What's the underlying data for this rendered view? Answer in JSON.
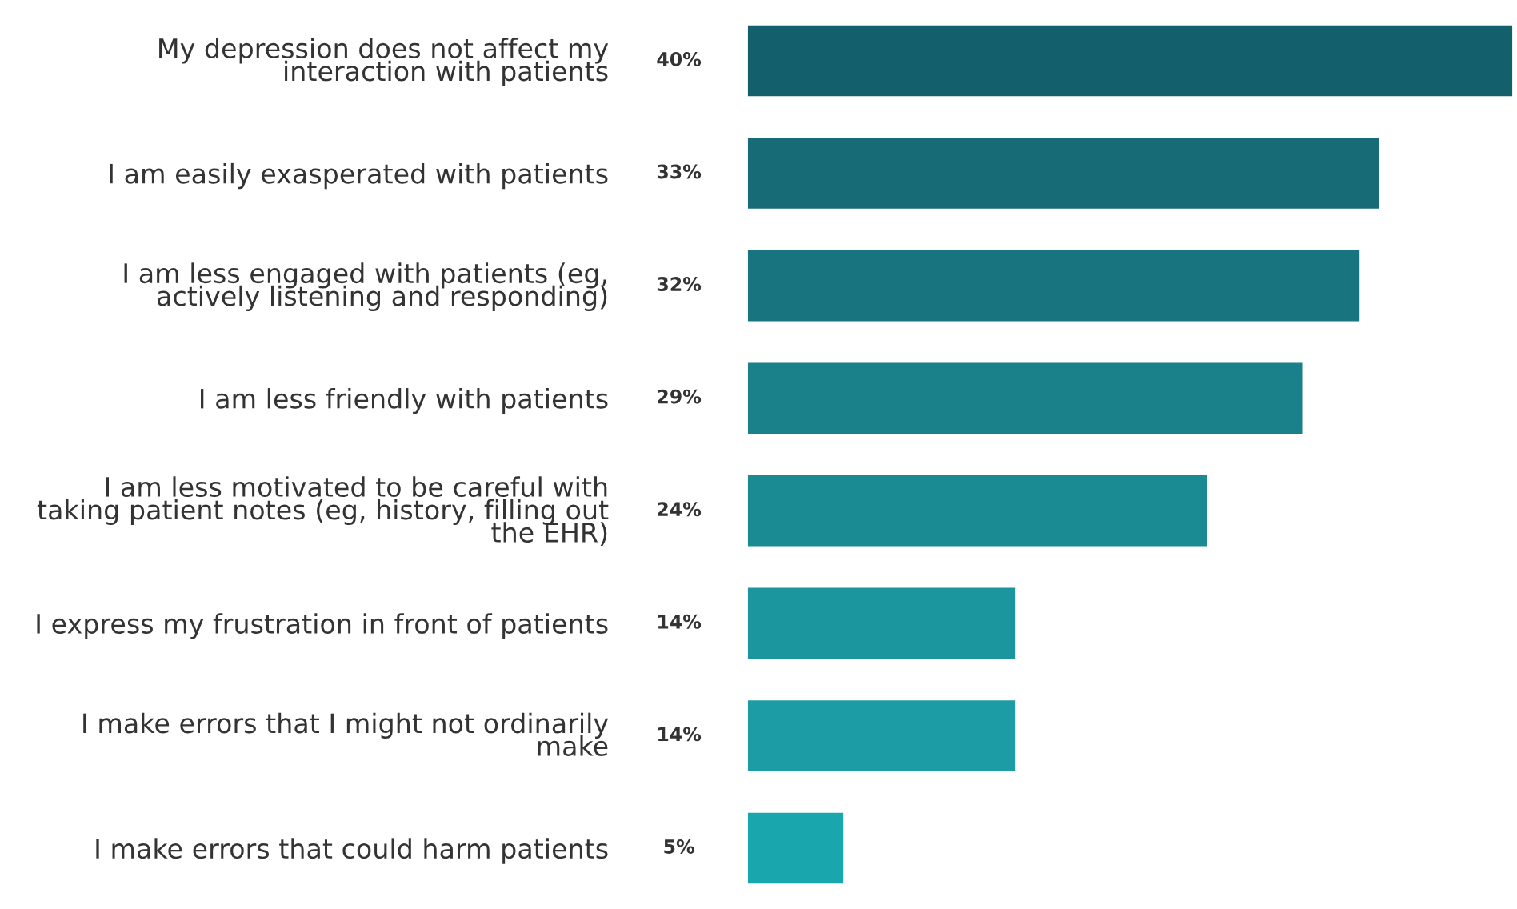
{
  "chart_data": {
    "type": "bar",
    "orientation": "horizontal",
    "categories": [
      "My depression does not affect my\ninteraction with patients",
      "I am easily exasperated with patients",
      "I am less engaged with patients (eg,\nactively listening and responding)",
      "I am less friendly with patients",
      "I am less motivated to be careful with\ntaking patient notes (eg, history, filling out\nthe EHR)",
      "I express my frustration in front of patients",
      "I make errors that I might not ordinarily\nmake",
      "I make errors that could harm patients"
    ],
    "values": [
      40,
      33,
      32,
      29,
      24,
      14,
      14,
      5
    ],
    "colors": [
      "#135f6b",
      "#166b76",
      "#18757f",
      "#1a8089",
      "#1b8b93",
      "#1c969e",
      "#1c9ca4",
      "#1aa6ad"
    ],
    "value_labels": [
      "40%",
      "33%",
      "32%",
      "29%",
      "24%",
      "14%",
      "14%",
      "5%"
    ],
    "grid": false,
    "tick_labels": "y"
  }
}
